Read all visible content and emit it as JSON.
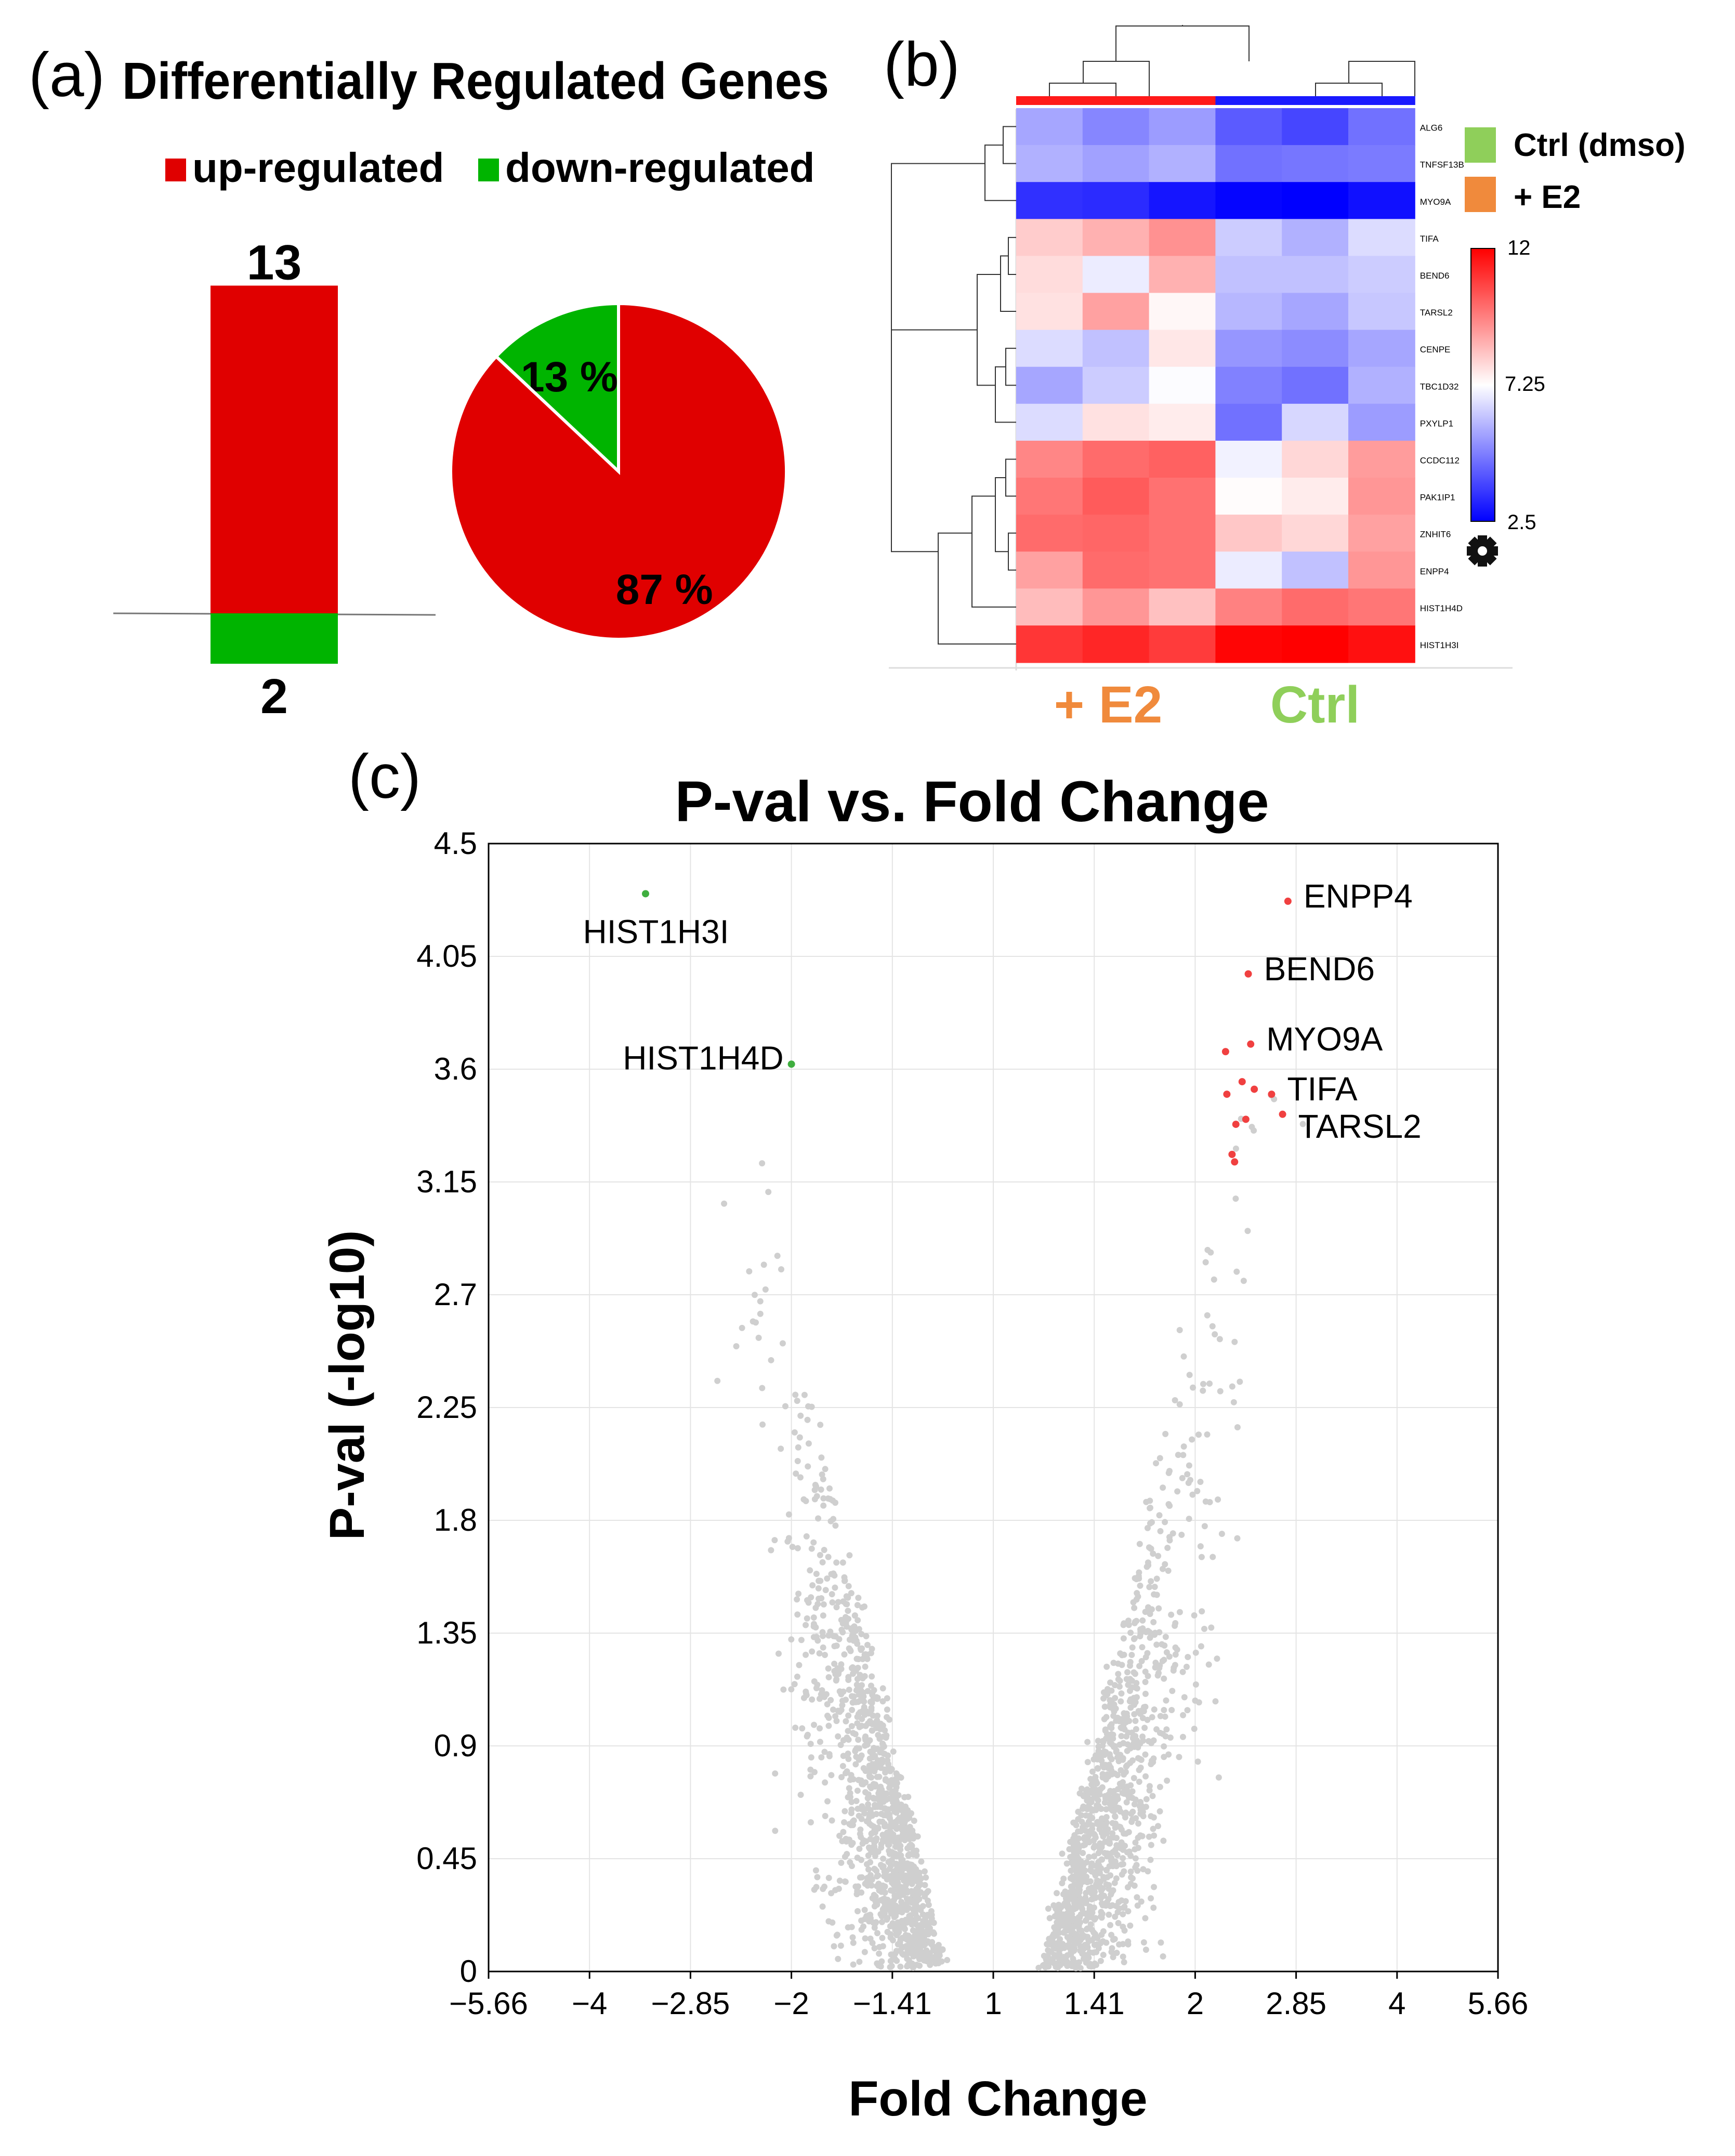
{
  "panel_a": {
    "letter": "(a)",
    "title": "Differentially Regulated Genes",
    "legend": [
      {
        "label": "up-regulated",
        "color": "#e00000"
      },
      {
        "label": "down-regulated",
        "color": "#00b400"
      }
    ]
  },
  "panel_b": {
    "letter": "(b)",
    "legend": [
      {
        "label": "Ctrl (dmso)",
        "color": "#8fcf5a"
      },
      {
        "label": "+ E2",
        "color": "#f08a3c"
      }
    ],
    "colorbar_ticks": [
      "12",
      "7.25",
      "2.5"
    ],
    "group_labels": [
      {
        "label": "+ E2",
        "color": "#f08a3c"
      },
      {
        "label": "Ctrl",
        "color": "#8fcf5a"
      }
    ],
    "settings_icon": "gear-icon"
  },
  "panel_c": {
    "letter": "(c)",
    "title": "P-val vs. Fold Change",
    "xlabel": "Fold Change",
    "ylabel": "P-val (-log10)"
  },
  "chart_data": [
    {
      "type": "bar",
      "categories": [
        "up-regulated",
        "down-regulated"
      ],
      "values": [
        13,
        2
      ],
      "value_labels": [
        "13",
        "2"
      ],
      "direction": [
        "up",
        "down"
      ],
      "colors": [
        "#e00000",
        "#00b400"
      ]
    },
    {
      "type": "pie",
      "slices": [
        {
          "label": "down-regulated",
          "value": 13,
          "text": "13 %",
          "color": "#00b400"
        },
        {
          "label": "up-regulated",
          "value": 87,
          "text": "87 %",
          "color": "#e00000"
        }
      ]
    },
    {
      "type": "heatmap",
      "rows": [
        "ALG6",
        "TNFSF13B",
        "MYO9A",
        "TIFA",
        "BEND6",
        "TARSL2",
        "CENPE",
        "TBC1D32",
        "PXYLP1",
        "CCDC112",
        "PAK1IP1",
        "ZNHIT6",
        "ENPP4",
        "HIST1H4D",
        "HIST1H3I"
      ],
      "column_groups": [
        "+ E2",
        "+ E2",
        "+ E2",
        "Ctrl",
        "Ctrl",
        "Ctrl"
      ],
      "values": [
        [
          5.6,
          5.0,
          5.4,
          4.2,
          3.8,
          4.6
        ],
        [
          5.8,
          5.5,
          5.8,
          4.6,
          4.7,
          4.8
        ],
        [
          3.4,
          3.3,
          2.9,
          2.6,
          2.5,
          2.8
        ],
        [
          8.2,
          8.7,
          9.3,
          6.3,
          5.8,
          6.6
        ],
        [
          7.9,
          6.9,
          8.7,
          6.1,
          6.1,
          6.3
        ],
        [
          7.8,
          9.0,
          7.4,
          5.9,
          5.6,
          6.2
        ],
        [
          6.6,
          6.1,
          7.7,
          5.3,
          5.1,
          5.6
        ],
        [
          5.6,
          6.3,
          7.2,
          4.9,
          4.6,
          5.8
        ],
        [
          6.6,
          7.8,
          7.6,
          4.6,
          6.5,
          5.4
        ],
        [
          9.5,
          10.0,
          10.2,
          7.0,
          8.0,
          9.1
        ],
        [
          9.8,
          10.3,
          9.9,
          7.3,
          7.6,
          9.2
        ],
        [
          10.0,
          10.1,
          9.9,
          8.3,
          8.0,
          9.0
        ],
        [
          9.0,
          10.0,
          9.9,
          6.9,
          6.1,
          9.2
        ],
        [
          8.5,
          9.2,
          8.4,
          9.6,
          10.0,
          9.8
        ],
        [
          11.0,
          11.3,
          10.9,
          11.9,
          12.0,
          11.7
        ]
      ],
      "colorscale": {
        "min": 2.5,
        "mid": 7.25,
        "max": 12,
        "low_color": "#0000ff",
        "mid_color": "#ffffff",
        "high_color": "#ff0000"
      }
    },
    {
      "type": "scatter",
      "x_tick_labels": [
        "−5.66",
        "−4",
        "−2.85",
        "−2",
        "−1.41",
        "1",
        "1.41",
        "2",
        "2.85",
        "4",
        "5.66"
      ],
      "y_tick_labels": [
        "4.5",
        "4.05",
        "3.6",
        "3.15",
        "2.7",
        "2.25",
        "1.8",
        "1.35",
        "0.9",
        "0.45",
        "0"
      ],
      "ylim": [
        0,
        4.5
      ],
      "xscale": "log2 fold change",
      "highlighted_points": [
        {
          "label": "HIST1H3I",
          "x": -3.3,
          "y": 4.3,
          "color": "#3fae3f"
        },
        {
          "label": "HIST1H4D",
          "x": -2.0,
          "y": 3.62,
          "color": "#3fae3f"
        },
        {
          "label": "ENPP4",
          "x": 2.75,
          "y": 4.27,
          "color": "#f04040"
        },
        {
          "label": "BEND6",
          "x": 2.4,
          "y": 3.98,
          "color": "#f04040"
        },
        {
          "label": "MYO9A",
          "x": 2.42,
          "y": 3.7,
          "color": "#f04040"
        },
        {
          "label": "TIFA",
          "x": 2.6,
          "y": 3.5,
          "color": "#f04040"
        },
        {
          "label": "TARSL2",
          "x": 2.7,
          "y": 3.42,
          "color": "#f04040"
        },
        {
          "label": "",
          "x": 2.22,
          "y": 3.67,
          "color": "#f04040"
        },
        {
          "label": "",
          "x": 2.35,
          "y": 3.55,
          "color": "#f04040"
        },
        {
          "label": "",
          "x": 2.45,
          "y": 3.52,
          "color": "#f04040"
        },
        {
          "label": "",
          "x": 2.23,
          "y": 3.5,
          "color": "#f04040"
        },
        {
          "label": "",
          "x": 2.38,
          "y": 3.4,
          "color": "#f04040"
        },
        {
          "label": "",
          "x": 2.3,
          "y": 3.38,
          "color": "#f04040"
        },
        {
          "label": "",
          "x": 2.27,
          "y": 3.26,
          "color": "#f04040"
        },
        {
          "label": "",
          "x": 2.29,
          "y": 3.23,
          "color": "#f04040"
        }
      ],
      "background_points_color": "#cfcfcf",
      "grid": true
    }
  ]
}
